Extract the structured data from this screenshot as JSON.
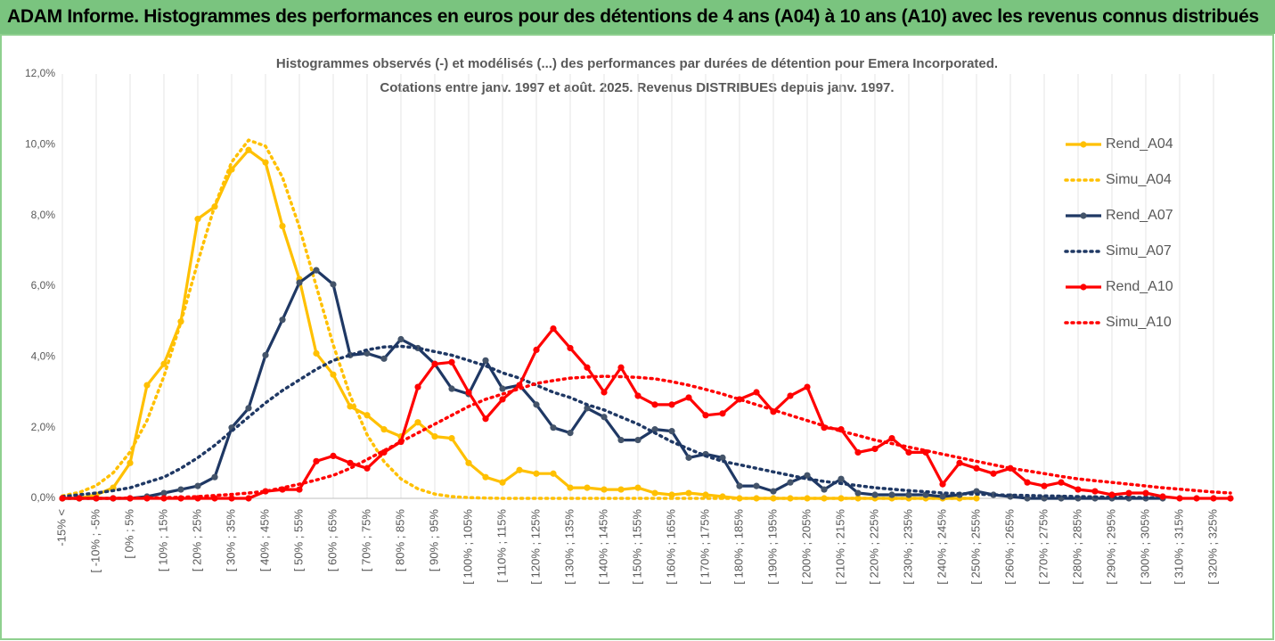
{
  "header": {
    "title": "ADAM Informe. Histogrammes des performances en euros pour des détentions de 4 ans (A04) à 10 ans (A10) avec les revenus connus distribués"
  },
  "chart_data": {
    "type": "line",
    "title": [
      "Histogrammes observés (-) et modélisés (...) des performances par durées de détention pour Emera Incorporated.",
      "Cotations entre janv. 1997 et août. 2025. Revenus DISTRIBUES depuis janv. 1997."
    ],
    "categories": [
      "-15% <",
      null,
      "[ -10% ; -5%",
      null,
      "[ 0% ; 5%",
      null,
      "[ 10% ; 15%",
      null,
      "[ 20% ; 25%",
      null,
      "[ 30% ; 35%",
      null,
      "[ 40% ; 45%",
      null,
      "[ 50% ; 55%",
      null,
      "[ 60% ; 65%",
      null,
      "[ 70% ; 75%",
      null,
      "[ 80% ; 85%",
      null,
      "[ 90% ; 95%",
      null,
      "[ 100% ; 105%",
      null,
      "[ 110% ; 115%",
      null,
      "[ 120% ; 125%",
      null,
      "[ 130% ; 135%",
      null,
      "[ 140% ; 145%",
      null,
      "[ 150% ; 155%",
      null,
      "[ 160% ; 165%",
      null,
      "[ 170% ; 175%",
      null,
      "[ 180% ; 185%",
      null,
      "[ 190% ; 195%",
      null,
      "[ 200% ; 205%",
      null,
      "[ 210% ; 215%",
      null,
      "[ 220% ; 225%",
      null,
      "[ 230% ; 235%",
      null,
      "[ 240% ; 245%",
      null,
      "[ 250% ; 255%",
      null,
      "[ 260% ; 265%",
      null,
      "[ 270% ; 275%",
      null,
      "[ 280% ; 285%",
      null,
      "[ 290% ; 295%",
      null,
      "[ 300% ; 305%",
      null,
      "[ 310% ; 315%",
      null,
      "[ 320% ; 325%",
      null
    ],
    "series": [
      {
        "name": "Rend_A04",
        "color": "#ffc000",
        "style": "solid",
        "markers": true,
        "values": [
          0,
          0,
          0.1,
          0.3,
          1.0,
          3.2,
          3.8,
          5.0,
          7.9,
          8.25,
          9.3,
          9.85,
          9.5,
          7.7,
          6.2,
          4.1,
          3.5,
          2.6,
          2.35,
          1.95,
          1.75,
          2.15,
          1.75,
          1.7,
          1.0,
          0.6,
          0.45,
          0.8,
          0.7,
          0.7,
          0.3,
          0.3,
          0.25,
          0.25,
          0.3,
          0.15,
          0.1,
          0.15,
          0.1,
          0.05,
          0,
          0,
          0,
          0,
          0,
          0,
          0,
          0,
          0,
          0,
          0,
          0,
          0,
          0,
          0,
          null,
          null,
          null,
          null,
          null,
          null,
          null,
          null,
          null,
          null,
          null,
          null,
          null,
          null,
          null
        ]
      },
      {
        "name": "Simu_A04",
        "color": "#ffc000",
        "style": "dotted",
        "markers": false,
        "values": [
          0.07,
          0.17,
          0.36,
          0.72,
          1.31,
          2.2,
          3.45,
          4.98,
          6.68,
          8.28,
          9.51,
          10.13,
          9.96,
          9.08,
          7.67,
          6.0,
          4.34,
          2.91,
          1.8,
          1.04,
          0.55,
          0.27,
          0.12,
          0.05,
          0.02,
          0.01,
          0,
          0,
          0,
          0,
          0,
          0,
          0,
          0,
          0,
          0,
          0,
          0,
          0,
          0,
          0,
          0,
          0,
          0,
          0,
          0,
          0,
          0,
          0,
          0,
          0,
          0,
          0,
          0,
          0,
          null,
          null,
          null,
          null,
          null,
          null,
          null,
          null,
          null,
          null,
          null,
          null,
          null,
          null,
          null
        ]
      },
      {
        "name": "Rend_A07",
        "color": "#1f3864",
        "style": "solid",
        "markers": true,
        "values": [
          0,
          0,
          0,
          0,
          0,
          0.05,
          0.15,
          0.25,
          0.35,
          0.6,
          2.0,
          2.55,
          4.05,
          5.05,
          6.1,
          6.45,
          6.05,
          4.05,
          4.1,
          3.95,
          4.5,
          4.25,
          3.8,
          3.1,
          2.95,
          3.9,
          3.1,
          3.2,
          2.65,
          2.0,
          1.85,
          2.55,
          2.3,
          1.65,
          1.65,
          1.95,
          1.9,
          1.15,
          1.25,
          1.15,
          0.35,
          0.35,
          0.2,
          0.45,
          0.65,
          0.25,
          0.55,
          0.15,
          0.1,
          0.1,
          0.1,
          0.1,
          0.05,
          0.1,
          0.2,
          0.1,
          0.05,
          0,
          0,
          0,
          0,
          0,
          0,
          0,
          0,
          0,
          null,
          null,
          null,
          null
        ]
      },
      {
        "name": "Simu_A07",
        "color": "#1f3864",
        "style": "dotted",
        "markers": false,
        "values": [
          0.05,
          0.1,
          0.15,
          0.22,
          0.3,
          0.45,
          0.6,
          0.85,
          1.15,
          1.5,
          1.9,
          2.3,
          2.7,
          3.05,
          3.35,
          3.65,
          3.9,
          4.05,
          4.2,
          4.28,
          4.3,
          4.25,
          4.15,
          4.05,
          3.9,
          3.75,
          3.55,
          3.4,
          3.2,
          3.0,
          2.85,
          2.65,
          2.5,
          2.3,
          2.1,
          1.85,
          1.6,
          1.4,
          1.2,
          1.05,
          0.95,
          0.85,
          0.75,
          0.65,
          0.55,
          0.48,
          0.42,
          0.36,
          0.3,
          0.26,
          0.22,
          0.19,
          0.15,
          0.13,
          0.12,
          0.1,
          0.09,
          0.08,
          0.07,
          0.06,
          0.05,
          0.04,
          0.03,
          0.03,
          0.02,
          0.02,
          null,
          null,
          null,
          null
        ]
      },
      {
        "name": "Rend_A10",
        "color": "#ff0000",
        "style": "solid",
        "markers": true,
        "values": [
          0,
          0,
          0,
          0,
          0,
          0,
          0,
          0,
          0,
          0,
          0,
          0,
          0.2,
          0.25,
          0.25,
          1.05,
          1.2,
          1.0,
          0.85,
          1.3,
          1.6,
          3.15,
          3.8,
          3.85,
          3.0,
          2.25,
          2.8,
          3.2,
          4.2,
          4.8,
          4.25,
          3.7,
          3.0,
          3.7,
          2.9,
          2.65,
          2.65,
          2.85,
          2.35,
          2.4,
          2.8,
          3.0,
          2.45,
          2.9,
          3.15,
          2.0,
          1.95,
          1.3,
          1.4,
          1.7,
          1.3,
          1.3,
          0.4,
          1.0,
          0.85,
          0.7,
          0.85,
          0.45,
          0.35,
          0.45,
          0.25,
          0.2,
          0.1,
          0.15,
          0.15,
          0.05,
          0,
          0,
          0,
          0
        ]
      },
      {
        "name": "Simu_A10",
        "color": "#ff0000",
        "style": "dotted",
        "markers": false,
        "values": [
          0,
          0,
          0,
          0,
          0.01,
          0.01,
          0.02,
          0.03,
          0.05,
          0.08,
          0.11,
          0.15,
          0.2,
          0.3,
          0.4,
          0.52,
          0.65,
          0.85,
          1.1,
          1.35,
          1.6,
          1.85,
          2.1,
          2.35,
          2.6,
          2.8,
          2.95,
          3.1,
          3.25,
          3.33,
          3.4,
          3.43,
          3.45,
          3.44,
          3.42,
          3.38,
          3.3,
          3.2,
          3.08,
          2.95,
          2.8,
          2.65,
          2.5,
          2.35,
          2.2,
          2.05,
          1.9,
          1.78,
          1.65,
          1.55,
          1.45,
          1.35,
          1.25,
          1.15,
          1.05,
          0.95,
          0.85,
          0.78,
          0.7,
          0.62,
          0.55,
          0.5,
          0.45,
          0.4,
          0.35,
          0.3,
          0.26,
          0.22,
          0.18,
          0.15
        ]
      }
    ],
    "ylim": [
      0,
      12
    ],
    "yticks": [
      {
        "value": 0,
        "label": "0,0%"
      },
      {
        "value": 2,
        "label": "2,0%"
      },
      {
        "value": 4,
        "label": "4,0%"
      },
      {
        "value": 6,
        "label": "6,0%"
      },
      {
        "value": 8,
        "label": "8,0%"
      },
      {
        "value": 10,
        "label": "10,0%"
      },
      {
        "value": 12,
        "label": "12,0%"
      }
    ],
    "grid": "x",
    "legend": "right"
  }
}
